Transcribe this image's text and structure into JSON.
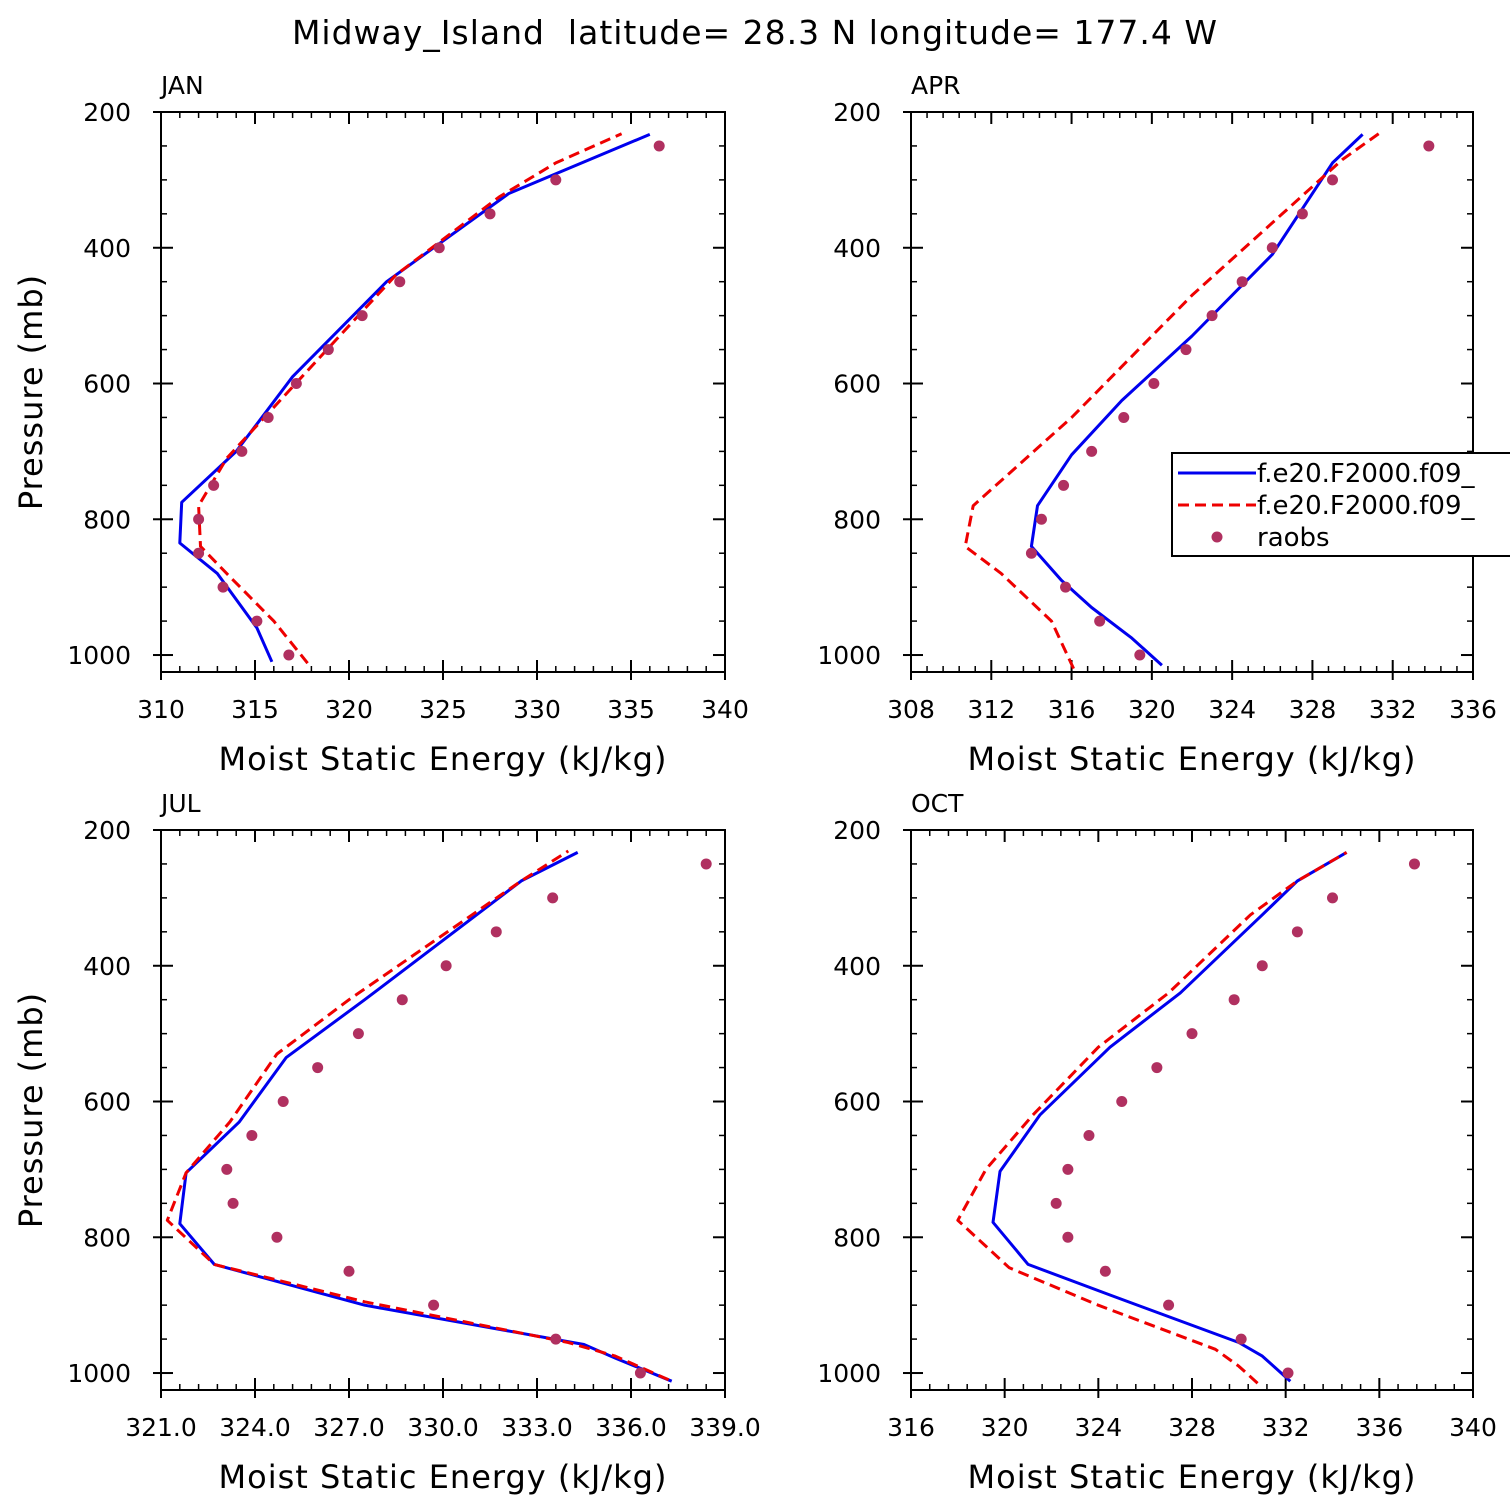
{
  "figure": {
    "title": "Midway_Island  latitude= 28.3 N longitude= 177.4 W"
  },
  "colors": {
    "model1": "#0000ee",
    "model2": "#ee0000",
    "raobs": "#b03060"
  },
  "legend": {
    "entries": [
      "f.e20.F2000.f09_",
      "f.e20.F2000.f09_",
      "raobs"
    ]
  },
  "chart_data": [
    {
      "type": "line",
      "panel": "JAN",
      "xlabel": "Moist Static Energy (kJ/kg)",
      "ylabel": "Pressure (mb)",
      "xlim": [
        310,
        340
      ],
      "ylim": [
        1025,
        200
      ],
      "y_inverted": true,
      "xticks": [
        310,
        315,
        320,
        325,
        330,
        335,
        340
      ],
      "xtick_labels": [
        "310",
        "315",
        "320",
        "325",
        "330",
        "335",
        "340"
      ],
      "yticks": [
        200,
        400,
        600,
        800,
        1000
      ],
      "ytick_labels": [
        "200",
        "400",
        "600",
        "800",
        "1000"
      ],
      "series": [
        {
          "style": "solid",
          "x": [
            315.9,
            315.1,
            313.0,
            311.0,
            311.1,
            314.0,
            317.0,
            322.0,
            328.5,
            336.0
          ],
          "y": [
            1010,
            960,
            880,
            835,
            775,
            700,
            590,
            450,
            320,
            233
          ]
        },
        {
          "style": "dashed",
          "x": [
            317.8,
            316.0,
            313.5,
            312.1,
            312.0,
            313.5,
            317.5,
            322.5,
            328.0,
            331.0,
            334.5
          ],
          "y": [
            1012,
            950,
            880,
            840,
            780,
            710,
            590,
            440,
            325,
            275,
            232
          ]
        },
        {
          "style": "markers",
          "x": [
            336.5,
            331.0,
            327.5,
            324.8,
            322.7,
            320.7,
            318.9,
            317.2,
            315.7,
            314.3,
            312.8,
            312.0,
            312.0,
            313.3,
            315.1,
            316.8
          ],
          "y": [
            250,
            300,
            350,
            400,
            450,
            500,
            550,
            600,
            650,
            700,
            750,
            800,
            850,
            900,
            950,
            1000
          ]
        }
      ]
    },
    {
      "type": "line",
      "panel": "APR",
      "xlabel": "Moist Static Energy (kJ/kg)",
      "ylabel": "",
      "xlim": [
        308,
        336
      ],
      "ylim": [
        1025,
        200
      ],
      "y_inverted": true,
      "xticks": [
        308,
        312,
        316,
        320,
        324,
        328,
        332,
        336
      ],
      "xtick_labels": [
        "308",
        "312",
        "316",
        "320",
        "324",
        "328",
        "332",
        "336"
      ],
      "yticks": [
        200,
        400,
        600,
        800,
        1000
      ],
      "ytick_labels": [
        "200",
        "400",
        "600",
        "800",
        "1000"
      ],
      "series": [
        {
          "name": "f.e20.F2000.f09_",
          "style": "solid",
          "x": [
            320.5,
            319.0,
            317.0,
            315.5,
            314.0,
            314.3,
            316.0,
            318.5,
            322.0,
            326.0,
            329.0,
            330.5
          ],
          "y": [
            1015,
            975,
            930,
            890,
            840,
            780,
            705,
            625,
            530,
            410,
            275,
            233
          ]
        },
        {
          "name": "f.e20.F2000.f09_",
          "style": "dashed",
          "x": [
            316.1,
            315.0,
            312.5,
            310.7,
            311.1,
            316.0,
            322.0,
            326.5,
            329.5,
            331.3
          ],
          "y": [
            1020,
            950,
            880,
            840,
            780,
            650,
            470,
            350,
            270,
            232
          ]
        },
        {
          "name": "raobs",
          "style": "markers",
          "x": [
            333.8,
            329.0,
            327.5,
            326.0,
            324.5,
            323.0,
            321.7,
            320.1,
            318.6,
            317.0,
            315.6,
            314.5,
            314.0,
            315.7,
            317.4,
            319.4
          ],
          "y": [
            250,
            300,
            350,
            400,
            450,
            500,
            550,
            600,
            650,
            700,
            750,
            800,
            850,
            900,
            950,
            1000
          ]
        }
      ]
    },
    {
      "type": "line",
      "panel": "JUL",
      "xlabel": "Moist Static Energy (kJ/kg)",
      "ylabel": "Pressure (mb)",
      "xlim": [
        321,
        339
      ],
      "ylim": [
        1025,
        200
      ],
      "y_inverted": true,
      "xticks": [
        321,
        324,
        327,
        330,
        333,
        336,
        339
      ],
      "xtick_labels": [
        "321.0",
        "324.0",
        "327.0",
        "330.0",
        "333.0",
        "336.0",
        "339.0"
      ],
      "yticks": [
        200,
        400,
        600,
        800,
        1000
      ],
      "ytick_labels": [
        "200",
        "400",
        "600",
        "800",
        "1000"
      ],
      "series": [
        {
          "style": "solid",
          "x": [
            337.3,
            335.5,
            334.5,
            327.5,
            322.7,
            321.6,
            321.8,
            323.5,
            325.0,
            327.5,
            332.5,
            334.3
          ],
          "y": [
            1012,
            978,
            958,
            900,
            840,
            780,
            705,
            630,
            535,
            450,
            275,
            233
          ]
        },
        {
          "style": "dashed",
          "x": [
            337.2,
            335.5,
            334.0,
            327.5,
            322.7,
            321.2,
            321.8,
            323.2,
            324.7,
            327.0,
            332.5,
            334.0
          ],
          "y": [
            1010,
            975,
            955,
            895,
            840,
            775,
            705,
            630,
            530,
            450,
            275,
            231
          ]
        },
        {
          "style": "markers",
          "x": [
            338.4,
            333.5,
            331.7,
            330.1,
            328.7,
            327.3,
            326.0,
            324.9,
            323.9,
            323.1,
            323.3,
            324.7,
            327.0,
            329.7,
            333.6,
            336.3
          ],
          "y": [
            250,
            300,
            350,
            400,
            450,
            500,
            550,
            600,
            650,
            700,
            750,
            800,
            850,
            900,
            950,
            1000
          ]
        }
      ]
    },
    {
      "type": "line",
      "panel": "OCT",
      "xlabel": "Moist Static Energy (kJ/kg)",
      "ylabel": "",
      "xlim": [
        316,
        340
      ],
      "ylim": [
        1025,
        200
      ],
      "y_inverted": true,
      "xticks": [
        316,
        320,
        324,
        328,
        332,
        336,
        340
      ],
      "xtick_labels": [
        "316",
        "320",
        "324",
        "328",
        "332",
        "336",
        "340"
      ],
      "yticks": [
        200,
        400,
        600,
        800,
        1000
      ],
      "ytick_labels": [
        "200",
        "400",
        "600",
        "800",
        "1000"
      ],
      "series": [
        {
          "style": "solid",
          "x": [
            332.2,
            331.0,
            330.0,
            324.5,
            321.0,
            319.5,
            319.8,
            321.5,
            324.5,
            327.5,
            331.0,
            332.5,
            334.6
          ],
          "y": [
            1012,
            975,
            955,
            885,
            840,
            778,
            703,
            620,
            520,
            440,
            325,
            275,
            233
          ]
        },
        {
          "style": "dashed",
          "x": [
            330.8,
            330.0,
            329.0,
            324.0,
            320.2,
            318.0,
            319.2,
            321.2,
            324.0,
            327.0,
            330.5,
            332.5,
            334.6
          ],
          "y": [
            1015,
            990,
            965,
            900,
            845,
            775,
            700,
            620,
            520,
            440,
            325,
            275,
            233
          ]
        },
        {
          "style": "markers",
          "x": [
            337.5,
            334.0,
            332.5,
            331.0,
            329.8,
            328.0,
            326.5,
            325.0,
            323.6,
            322.7,
            322.2,
            322.7,
            324.3,
            327.0,
            330.1,
            332.1
          ],
          "y": [
            250,
            300,
            350,
            400,
            450,
            500,
            550,
            600,
            650,
            700,
            750,
            800,
            850,
            900,
            950,
            1000
          ]
        }
      ]
    }
  ]
}
